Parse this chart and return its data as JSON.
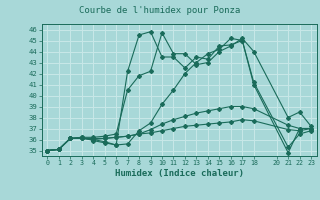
{
  "title": "Courbe de l'humidex pour Ponza",
  "xlabel": "Humidex (Indice chaleur)",
  "background_color": "#a8d8d8",
  "grid_color": "#c8e8e8",
  "line_color": "#1a6b5a",
  "xlim": [
    -0.5,
    23.5
  ],
  "ylim": [
    34.5,
    46.5
  ],
  "yticks": [
    35,
    36,
    37,
    38,
    39,
    40,
    41,
    42,
    43,
    44,
    45,
    46
  ],
  "xticks": [
    0,
    1,
    2,
    3,
    4,
    5,
    6,
    7,
    8,
    9,
    10,
    11,
    12,
    13,
    14,
    15,
    16,
    17,
    18,
    20,
    21,
    22,
    23
  ],
  "xtick_labels": [
    "0",
    "1",
    "2",
    "3",
    "4",
    "5",
    "6",
    "7",
    "8",
    "9",
    "10",
    "11",
    "12",
    "13",
    "14",
    "15",
    "16",
    "17",
    "18",
    "20",
    "21",
    "22",
    "23"
  ],
  "lines": [
    {
      "x": [
        0,
        1,
        2,
        3,
        4,
        5,
        6,
        7,
        8,
        9,
        10,
        11,
        12,
        13,
        14,
        15,
        16,
        17,
        18,
        21,
        22,
        23
      ],
      "y": [
        35,
        35.1,
        36.1,
        36.1,
        36.0,
        35.8,
        35.5,
        42.2,
        45.5,
        45.8,
        43.5,
        43.5,
        42.5,
        43.5,
        43.3,
        44.5,
        44.6,
        45.0,
        41.0,
        34.8,
        37.0,
        37.0
      ]
    },
    {
      "x": [
        0,
        1,
        2,
        3,
        4,
        5,
        6,
        7,
        8,
        9,
        10,
        11,
        12,
        13,
        14,
        15,
        16,
        17,
        18,
        21,
        22,
        23
      ],
      "y": [
        35,
        35.1,
        36.1,
        36.2,
        36.2,
        36.3,
        36.5,
        40.5,
        41.8,
        42.2,
        45.7,
        43.8,
        43.8,
        42.8,
        43.0,
        44.0,
        44.5,
        45.2,
        44.0,
        38.0,
        38.5,
        37.2
      ]
    },
    {
      "x": [
        0,
        1,
        2,
        3,
        4,
        5,
        6,
        7,
        8,
        9,
        10,
        11,
        12,
        13,
        14,
        15,
        16,
        17,
        18,
        21,
        22,
        23
      ],
      "y": [
        35,
        35.1,
        36.1,
        36.2,
        35.9,
        35.7,
        35.5,
        35.6,
        36.8,
        37.5,
        39.2,
        40.5,
        42.0,
        43.0,
        43.8,
        44.2,
        45.2,
        45.0,
        41.2,
        35.3,
        36.5,
        36.8
      ]
    },
    {
      "x": [
        0,
        1,
        2,
        3,
        4,
        5,
        6,
        7,
        8,
        9,
        10,
        11,
        12,
        13,
        14,
        15,
        16,
        17,
        18,
        21,
        22,
        23
      ],
      "y": [
        35,
        35.1,
        36.1,
        36.1,
        36.1,
        36.1,
        36.2,
        36.3,
        36.5,
        36.9,
        37.4,
        37.8,
        38.1,
        38.4,
        38.6,
        38.8,
        39.0,
        39.0,
        38.8,
        37.3,
        37.0,
        37.0
      ]
    },
    {
      "x": [
        0,
        1,
        2,
        3,
        4,
        5,
        6,
        7,
        8,
        9,
        10,
        11,
        12,
        13,
        14,
        15,
        16,
        17,
        18,
        21,
        22,
        23
      ],
      "y": [
        35,
        35.1,
        36.1,
        36.1,
        36.0,
        36.1,
        36.2,
        36.3,
        36.5,
        36.6,
        36.8,
        37.0,
        37.2,
        37.3,
        37.4,
        37.5,
        37.6,
        37.8,
        37.7,
        36.9,
        36.8,
        37.0
      ]
    }
  ]
}
